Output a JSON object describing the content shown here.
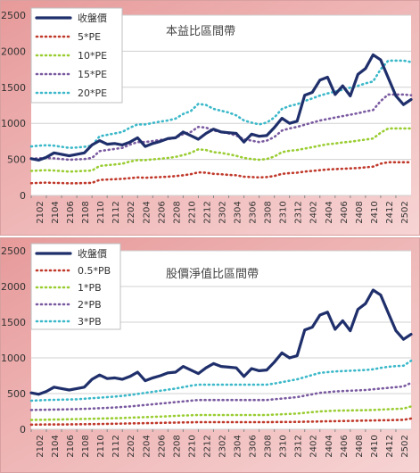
{
  "chart_data": [
    {
      "type": "line",
      "title": "本益比區間帶",
      "ylim": [
        0,
        2500
      ],
      "yticks": [
        "0",
        "500",
        "1000",
        "1500",
        "2000",
        "2500"
      ],
      "x_tick_labels": [
        "2102",
        "2104",
        "2106",
        "2108",
        "2110",
        "2112",
        "2202",
        "2204",
        "2206",
        "2208",
        "2210",
        "2212",
        "2302",
        "2304",
        "2306",
        "2308",
        "2310",
        "2312",
        "2402",
        "2404",
        "2406",
        "2408",
        "2410",
        "2412",
        "2502"
      ],
      "grid": true,
      "legend_position": "top-left",
      "series": [
        {
          "name": "收盤價",
          "color": "#1f2f6b",
          "width": 3.2,
          "dash": "",
          "values": [
            510,
            490,
            530,
            590,
            570,
            550,
            570,
            590,
            700,
            760,
            710,
            720,
            700,
            740,
            800,
            680,
            720,
            750,
            790,
            800,
            880,
            830,
            780,
            860,
            920,
            880,
            870,
            860,
            740,
            850,
            820,
            830,
            940,
            1070,
            1000,
            1030,
            1390,
            1430,
            1600,
            1640,
            1400,
            1520,
            1380,
            1680,
            1760,
            1950,
            1880,
            1630,
            1380,
            1260,
            1330
          ]
        },
        {
          "name": "5*PE",
          "color": "#c0392b",
          "width": 2.6,
          "dash": "1 4",
          "values": [
            170,
            175,
            178,
            175,
            172,
            168,
            170,
            172,
            175,
            215,
            220,
            225,
            230,
            240,
            250,
            245,
            250,
            255,
            260,
            268,
            280,
            295,
            320,
            315,
            300,
            295,
            285,
            280,
            260,
            255,
            250,
            255,
            270,
            300,
            310,
            315,
            330,
            340,
            350,
            360,
            365,
            370,
            375,
            380,
            390,
            400,
            440,
            460,
            460,
            460,
            460
          ]
        },
        {
          "name": "10*PE",
          "color": "#9acd32",
          "width": 2.6,
          "dash": "1 4",
          "values": [
            340,
            345,
            350,
            345,
            338,
            330,
            335,
            340,
            345,
            410,
            420,
            430,
            440,
            470,
            490,
            490,
            500,
            510,
            520,
            535,
            560,
            590,
            640,
            630,
            600,
            590,
            570,
            550,
            520,
            505,
            495,
            505,
            540,
            600,
            620,
            630,
            650,
            670,
            690,
            710,
            720,
            735,
            745,
            760,
            775,
            790,
            870,
            930,
            930,
            930,
            930
          ]
        },
        {
          "name": "15*PE",
          "color": "#7a5aa0",
          "width": 2.6,
          "dash": "1 4",
          "values": [
            510,
            515,
            520,
            515,
            505,
            495,
            500,
            505,
            520,
            615,
            630,
            645,
            660,
            705,
            740,
            740,
            755,
            770,
            780,
            800,
            850,
            880,
            950,
            940,
            900,
            880,
            860,
            830,
            780,
            760,
            740,
            760,
            810,
            900,
            930,
            950,
            980,
            1010,
            1040,
            1060,
            1080,
            1100,
            1120,
            1140,
            1165,
            1185,
            1310,
            1400,
            1400,
            1400,
            1390
          ]
        },
        {
          "name": "20*PE",
          "color": "#3bb8c9",
          "width": 2.6,
          "dash": "1 4",
          "values": [
            680,
            690,
            695,
            690,
            675,
            660,
            665,
            675,
            690,
            820,
            840,
            860,
            880,
            940,
            985,
            985,
            1005,
            1025,
            1040,
            1065,
            1130,
            1170,
            1270,
            1255,
            1200,
            1175,
            1150,
            1110,
            1040,
            1010,
            985,
            1010,
            1080,
            1200,
            1240,
            1265,
            1310,
            1345,
            1385,
            1415,
            1440,
            1465,
            1495,
            1520,
            1555,
            1580,
            1750,
            1870,
            1870,
            1870,
            1850
          ]
        }
      ]
    },
    {
      "type": "line",
      "title": "股價淨值比區間帶",
      "ylim": [
        0,
        2500
      ],
      "yticks": [
        "0",
        "500",
        "1000",
        "1500",
        "2000",
        "2500"
      ],
      "x_tick_labels": [
        "2102",
        "2104",
        "2106",
        "2108",
        "2110",
        "2112",
        "2202",
        "2204",
        "2206",
        "2208",
        "2210",
        "2212",
        "2302",
        "2304",
        "2306",
        "2308",
        "2310",
        "2312",
        "2402",
        "2404",
        "2406",
        "2408",
        "2410",
        "2412",
        "2502"
      ],
      "grid": true,
      "legend_position": "top-left",
      "series": [
        {
          "name": "收盤價",
          "color": "#1f2f6b",
          "width": 3.2,
          "dash": "",
          "values": [
            510,
            490,
            530,
            590,
            570,
            550,
            570,
            590,
            700,
            760,
            710,
            720,
            700,
            740,
            800,
            680,
            720,
            750,
            790,
            800,
            880,
            830,
            780,
            860,
            920,
            880,
            870,
            860,
            740,
            850,
            820,
            830,
            940,
            1070,
            1000,
            1030,
            1390,
            1430,
            1600,
            1640,
            1400,
            1520,
            1380,
            1680,
            1760,
            1950,
            1880,
            1630,
            1380,
            1260,
            1330
          ]
        },
        {
          "name": "0.5*PB",
          "color": "#c0392b",
          "width": 2.6,
          "dash": "1 4",
          "values": [
            65,
            66,
            67,
            68,
            68,
            69,
            70,
            71,
            72,
            74,
            76,
            78,
            80,
            82,
            84,
            86,
            88,
            90,
            92,
            94,
            96,
            98,
            100,
            100,
            100,
            100,
            100,
            100,
            100,
            100,
            100,
            100,
            101,
            102,
            103,
            104,
            106,
            108,
            110,
            112,
            114,
            116,
            118,
            120,
            122,
            124,
            126,
            128,
            130,
            132,
            150
          ]
        },
        {
          "name": "1*PB",
          "color": "#9acd32",
          "width": 2.6,
          "dash": "1 4",
          "values": [
            130,
            132,
            134,
            136,
            138,
            140,
            142,
            145,
            148,
            150,
            152,
            155,
            158,
            162,
            166,
            170,
            174,
            178,
            182,
            188,
            192,
            196,
            200,
            200,
            200,
            200,
            200,
            200,
            200,
            200,
            200,
            200,
            205,
            210,
            215,
            220,
            230,
            240,
            250,
            255,
            260,
            262,
            264,
            266,
            268,
            270,
            275,
            280,
            285,
            290,
            320
          ]
        },
        {
          "name": "2*PB",
          "color": "#7a5aa0",
          "width": 2.6,
          "dash": "1 4",
          "values": [
            270,
            272,
            274,
            276,
            278,
            280,
            282,
            286,
            290,
            295,
            300,
            305,
            312,
            320,
            330,
            340,
            350,
            360,
            370,
            380,
            390,
            400,
            410,
            410,
            410,
            410,
            410,
            410,
            410,
            410,
            410,
            410,
            420,
            430,
            440,
            450,
            470,
            490,
            510,
            520,
            530,
            535,
            540,
            545,
            550,
            560,
            570,
            580,
            590,
            600,
            650
          ]
        },
        {
          "name": "3*PB",
          "color": "#3bb8c9",
          "width": 2.6,
          "dash": "1 4",
          "values": [
            400,
            405,
            410,
            412,
            415,
            418,
            420,
            428,
            435,
            442,
            450,
            458,
            468,
            480,
            495,
            510,
            525,
            540,
            555,
            570,
            590,
            610,
            625,
            625,
            625,
            625,
            625,
            625,
            625,
            625,
            625,
            625,
            640,
            660,
            680,
            700,
            730,
            760,
            790,
            800,
            810,
            815,
            820,
            825,
            830,
            840,
            860,
            875,
            885,
            890,
            960
          ]
        }
      ]
    }
  ]
}
